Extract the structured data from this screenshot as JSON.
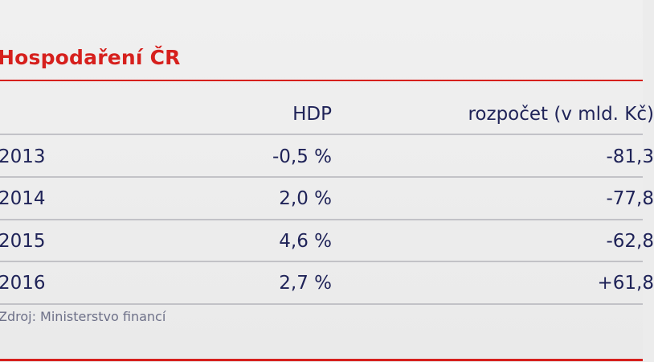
{
  "chart_data": {
    "type": "table",
    "title": "Hospodaření ČR",
    "columns": [
      "",
      "HDP",
      "rozpočet (v mld. Kč)"
    ],
    "rows": [
      {
        "year": "2013",
        "hdp": "-0,5 %",
        "budget": "-81,3"
      },
      {
        "year": "2014",
        "hdp": "2,0 %",
        "budget": "-77,8"
      },
      {
        "year": "2015",
        "hdp": "4,6 %",
        "budget": "-62,8"
      },
      {
        "year": "2016",
        "hdp": "2,7 %",
        "budget": "+61,8"
      }
    ],
    "source": "Zdroj: Ministerstvo financí"
  },
  "colors": {
    "title": "#d6201d",
    "text": "#1f2358",
    "rule": "#c2c2c7",
    "accent_rule": "#d6201d",
    "background": "#ececec"
  }
}
